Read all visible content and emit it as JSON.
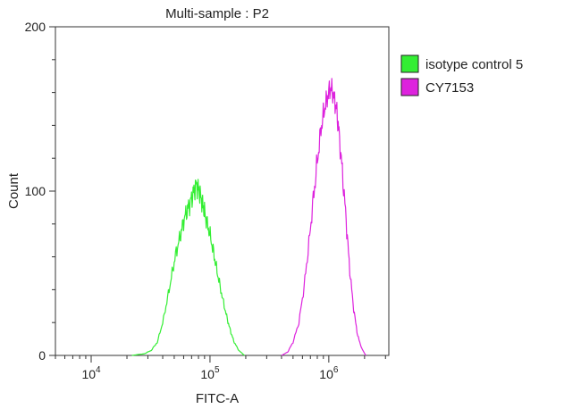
{
  "chart_data": {
    "type": "line",
    "title": "Multi-sample : P2",
    "xlabel": "FITC-A",
    "ylabel": "Count",
    "x_scale": "log",
    "xlim": [
      5000,
      3200000
    ],
    "ylim": [
      0,
      200
    ],
    "x_ticks": [
      {
        "value": 10000,
        "base": "10",
        "exp": "4"
      },
      {
        "value": 100000,
        "base": "10",
        "exp": "5"
      },
      {
        "value": 1000000,
        "base": "10",
        "exp": "6"
      }
    ],
    "y_ticks": [
      {
        "value": 0,
        "label": "0"
      },
      {
        "value": 100,
        "label": "100"
      },
      {
        "value": 200,
        "label": "200"
      }
    ],
    "legend_position": "right",
    "grid": false,
    "series": [
      {
        "name": "isotype control 5",
        "color": "#33ee33",
        "x": [
          22000,
          28000,
          32000,
          36000,
          40000,
          44000,
          48000,
          52000,
          56000,
          60000,
          64000,
          68000,
          72000,
          76000,
          80000,
          84000,
          88000,
          92000,
          98000,
          105000,
          112000,
          120000,
          130000,
          140000,
          150000,
          160000,
          175000,
          195000
        ],
        "y": [
          0,
          1,
          3,
          8,
          20,
          35,
          50,
          63,
          72,
          82,
          88,
          93,
          98,
          104,
          101,
          96,
          90,
          84,
          76,
          66,
          55,
          44,
          32,
          22,
          14,
          8,
          3,
          0
        ]
      },
      {
        "name": "CY7153",
        "color": "#dd22dd",
        "x": [
          400000,
          450000,
          500000,
          560000,
          620000,
          680000,
          740000,
          800000,
          860000,
          920000,
          980000,
          1040000,
          1100000,
          1160000,
          1220000,
          1300000,
          1400000,
          1500000,
          1620000,
          1750000,
          1900000,
          2050000
        ],
        "y": [
          0,
          2,
          8,
          20,
          42,
          68,
          95,
          118,
          138,
          150,
          158,
          163,
          158,
          150,
          135,
          112,
          82,
          52,
          28,
          12,
          4,
          0
        ]
      }
    ]
  }
}
